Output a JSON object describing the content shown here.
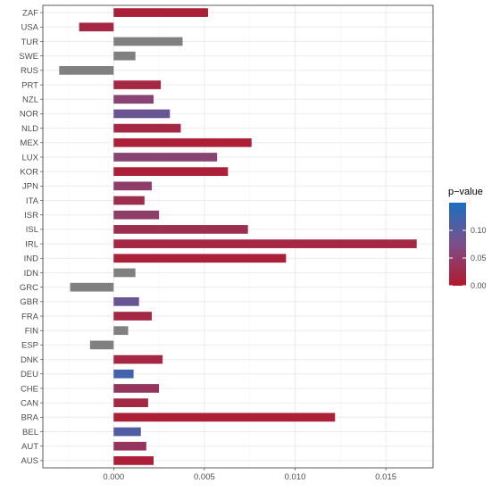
{
  "chart_data": {
    "type": "bar",
    "orientation": "horizontal",
    "categories": [
      "ZAF",
      "USA",
      "TUR",
      "SWE",
      "RUS",
      "PRT",
      "NZL",
      "NOR",
      "NLD",
      "MEX",
      "LUX",
      "KOR",
      "JPN",
      "ITA",
      "ISR",
      "ISL",
      "IRL",
      "IND",
      "IDN",
      "GRC",
      "GBR",
      "FRA",
      "FIN",
      "ESP",
      "DNK",
      "DEU",
      "CHE",
      "CAN",
      "BRA",
      "BEL",
      "AUT",
      "AUS"
    ],
    "values": [
      0.0052,
      -0.0019,
      0.0038,
      0.0012,
      -0.003,
      0.0026,
      0.0022,
      0.0031,
      0.0037,
      0.0076,
      0.0057,
      0.0063,
      0.0021,
      0.0017,
      0.0025,
      0.0074,
      0.0167,
      0.0095,
      0.0012,
      -0.0024,
      0.0014,
      0.0021,
      0.0008,
      -0.0013,
      0.0027,
      0.0011,
      0.0025,
      0.0019,
      0.0122,
      0.0015,
      0.0018,
      0.0022
    ],
    "p_values": [
      0.01,
      0.02,
      null,
      null,
      null,
      0.02,
      0.06,
      0.09,
      0.02,
      0.01,
      0.06,
      0.01,
      0.05,
      0.03,
      0.05,
      0.03,
      0.02,
      0.01,
      null,
      null,
      0.09,
      0.02,
      null,
      null,
      0.02,
      0.12,
      0.04,
      0.02,
      0.01,
      0.11,
      0.04,
      0.01
    ],
    "xlim": [
      -0.0039,
      0.0176
    ],
    "x_ticks": [
      0.0,
      0.005,
      0.01,
      0.015
    ],
    "x_tick_labels": [
      "0.000",
      "0.005",
      "0.010",
      "0.015"
    ],
    "grid": true,
    "legend": {
      "title": "p−value",
      "position": "right",
      "ticks": [
        0.0,
        0.05,
        0.1
      ],
      "tick_labels": [
        "0.00",
        "0.05",
        "0.10"
      ],
      "range": [
        0.0,
        0.15
      ],
      "color_low": "#b2182b",
      "color_mid": "#7c4f88",
      "color_high": "#1b6fc2",
      "na_color": "#808080"
    },
    "colors": {
      "panel_border": "#333333",
      "grid_major": "#ebebeb",
      "grid_minor": "#f5f5f5",
      "text": "#4d4d4d"
    }
  }
}
